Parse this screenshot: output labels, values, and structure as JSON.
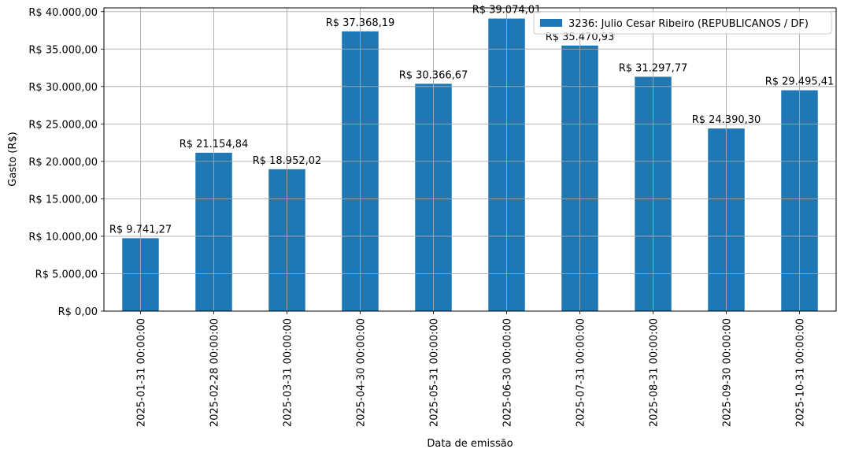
{
  "chart_data": {
    "type": "bar",
    "categories": [
      "2025-01-31 00:00:00",
      "2025-02-28 00:00:00",
      "2025-03-31 00:00:00",
      "2025-04-30 00:00:00",
      "2025-05-31 00:00:00",
      "2025-06-30 00:00:00",
      "2025-07-31 00:00:00",
      "2025-08-31 00:00:00",
      "2025-09-30 00:00:00",
      "2025-10-31 00:00:00"
    ],
    "series": [
      {
        "name": "3236: Julio Cesar Ribeiro (REPUBLICANOS / DF)",
        "color": "#1f77b4",
        "values": [
          9741.27,
          21154.84,
          18952.02,
          37368.19,
          30366.67,
          39074.01,
          35470.93,
          31297.77,
          24390.3,
          29495.41
        ],
        "labels": [
          "R$ 9.741,27",
          "R$ 21.154,84",
          "R$ 18.952,02",
          "R$ 37.368,19",
          "R$ 30.366,67",
          "R$ 39.074,01",
          "R$ 35.470,93",
          "R$ 31.297,77",
          "R$ 24.390,30",
          "R$ 29.495,41"
        ]
      }
    ],
    "title": "",
    "xlabel": "Data de emissão",
    "ylabel": "Gasto (R$)",
    "ylim": [
      0,
      40500
    ],
    "yticks": [
      0,
      5000,
      10000,
      15000,
      20000,
      25000,
      30000,
      35000,
      40000
    ],
    "ytick_labels": [
      "R$ 0,00",
      "R$ 5.000,00",
      "R$ 10.000,00",
      "R$ 15.000,00",
      "R$ 20.000,00",
      "R$ 25.000,00",
      "R$ 30.000,00",
      "R$ 35.000,00",
      "R$ 40.000,00"
    ],
    "grid": true,
    "legend": "top-right"
  }
}
